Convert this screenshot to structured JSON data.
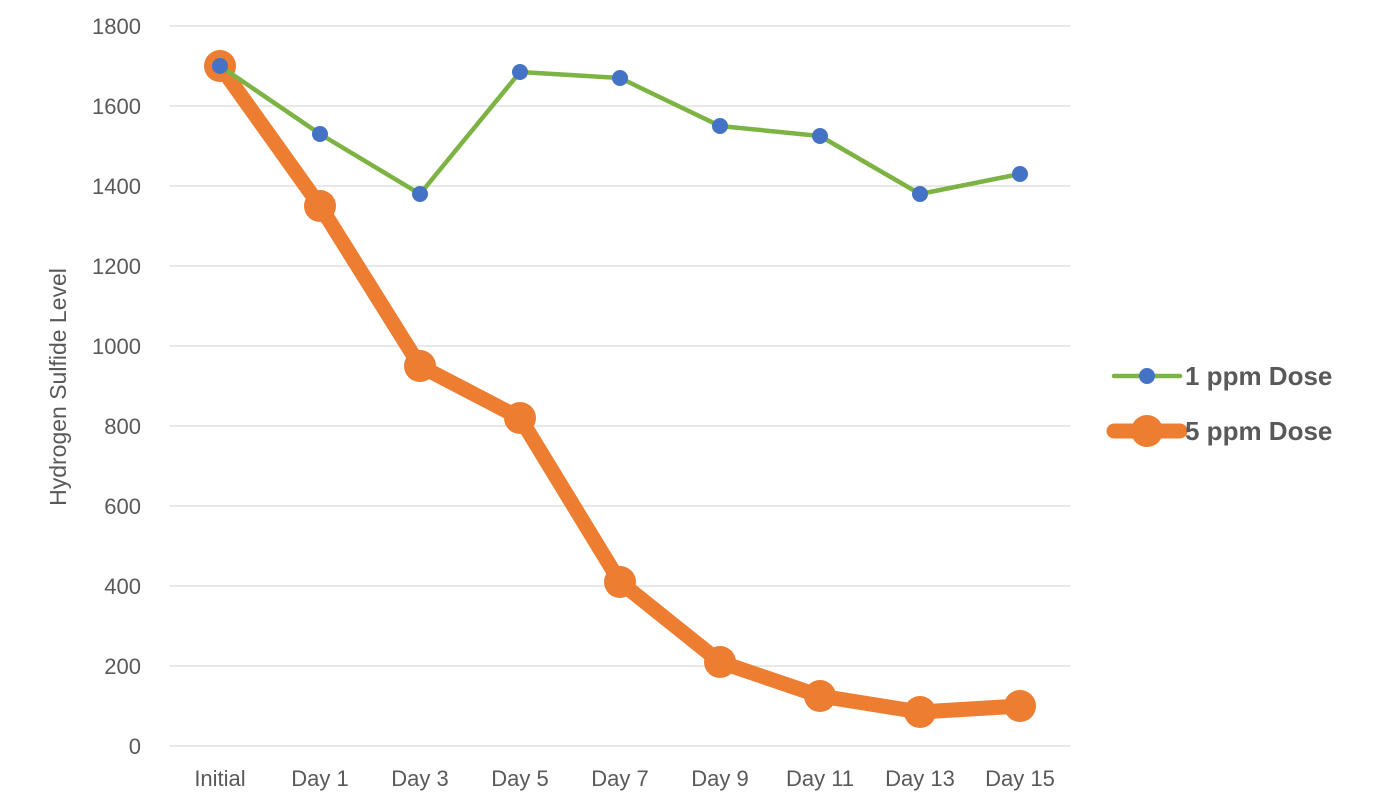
{
  "chart_data": {
    "type": "line",
    "title": "",
    "xlabel": "",
    "ylabel": "Hydrogen Sulfide Level",
    "categories": [
      "Initial",
      "Day 1",
      "Day 3",
      "Day 5",
      "Day 7",
      "Day 9",
      "Day 11",
      "Day 13",
      "Day 15"
    ],
    "ylim": [
      0,
      1800
    ],
    "yticks": [
      0,
      200,
      400,
      600,
      800,
      1000,
      1200,
      1400,
      1600,
      1800
    ],
    "grid": true,
    "legend_position": "right",
    "series": [
      {
        "name": "1 ppm Dose",
        "line_color": "#7cb342",
        "marker_color": "#4472c4",
        "values": [
          1700,
          1530,
          1380,
          1685,
          1670,
          1550,
          1525,
          1380,
          1430
        ]
      },
      {
        "name": "5 ppm Dose",
        "line_color": "#ed7d31",
        "marker_color": "#ed7d31",
        "values": [
          1700,
          1350,
          950,
          820,
          410,
          210,
          125,
          85,
          100
        ]
      }
    ]
  }
}
